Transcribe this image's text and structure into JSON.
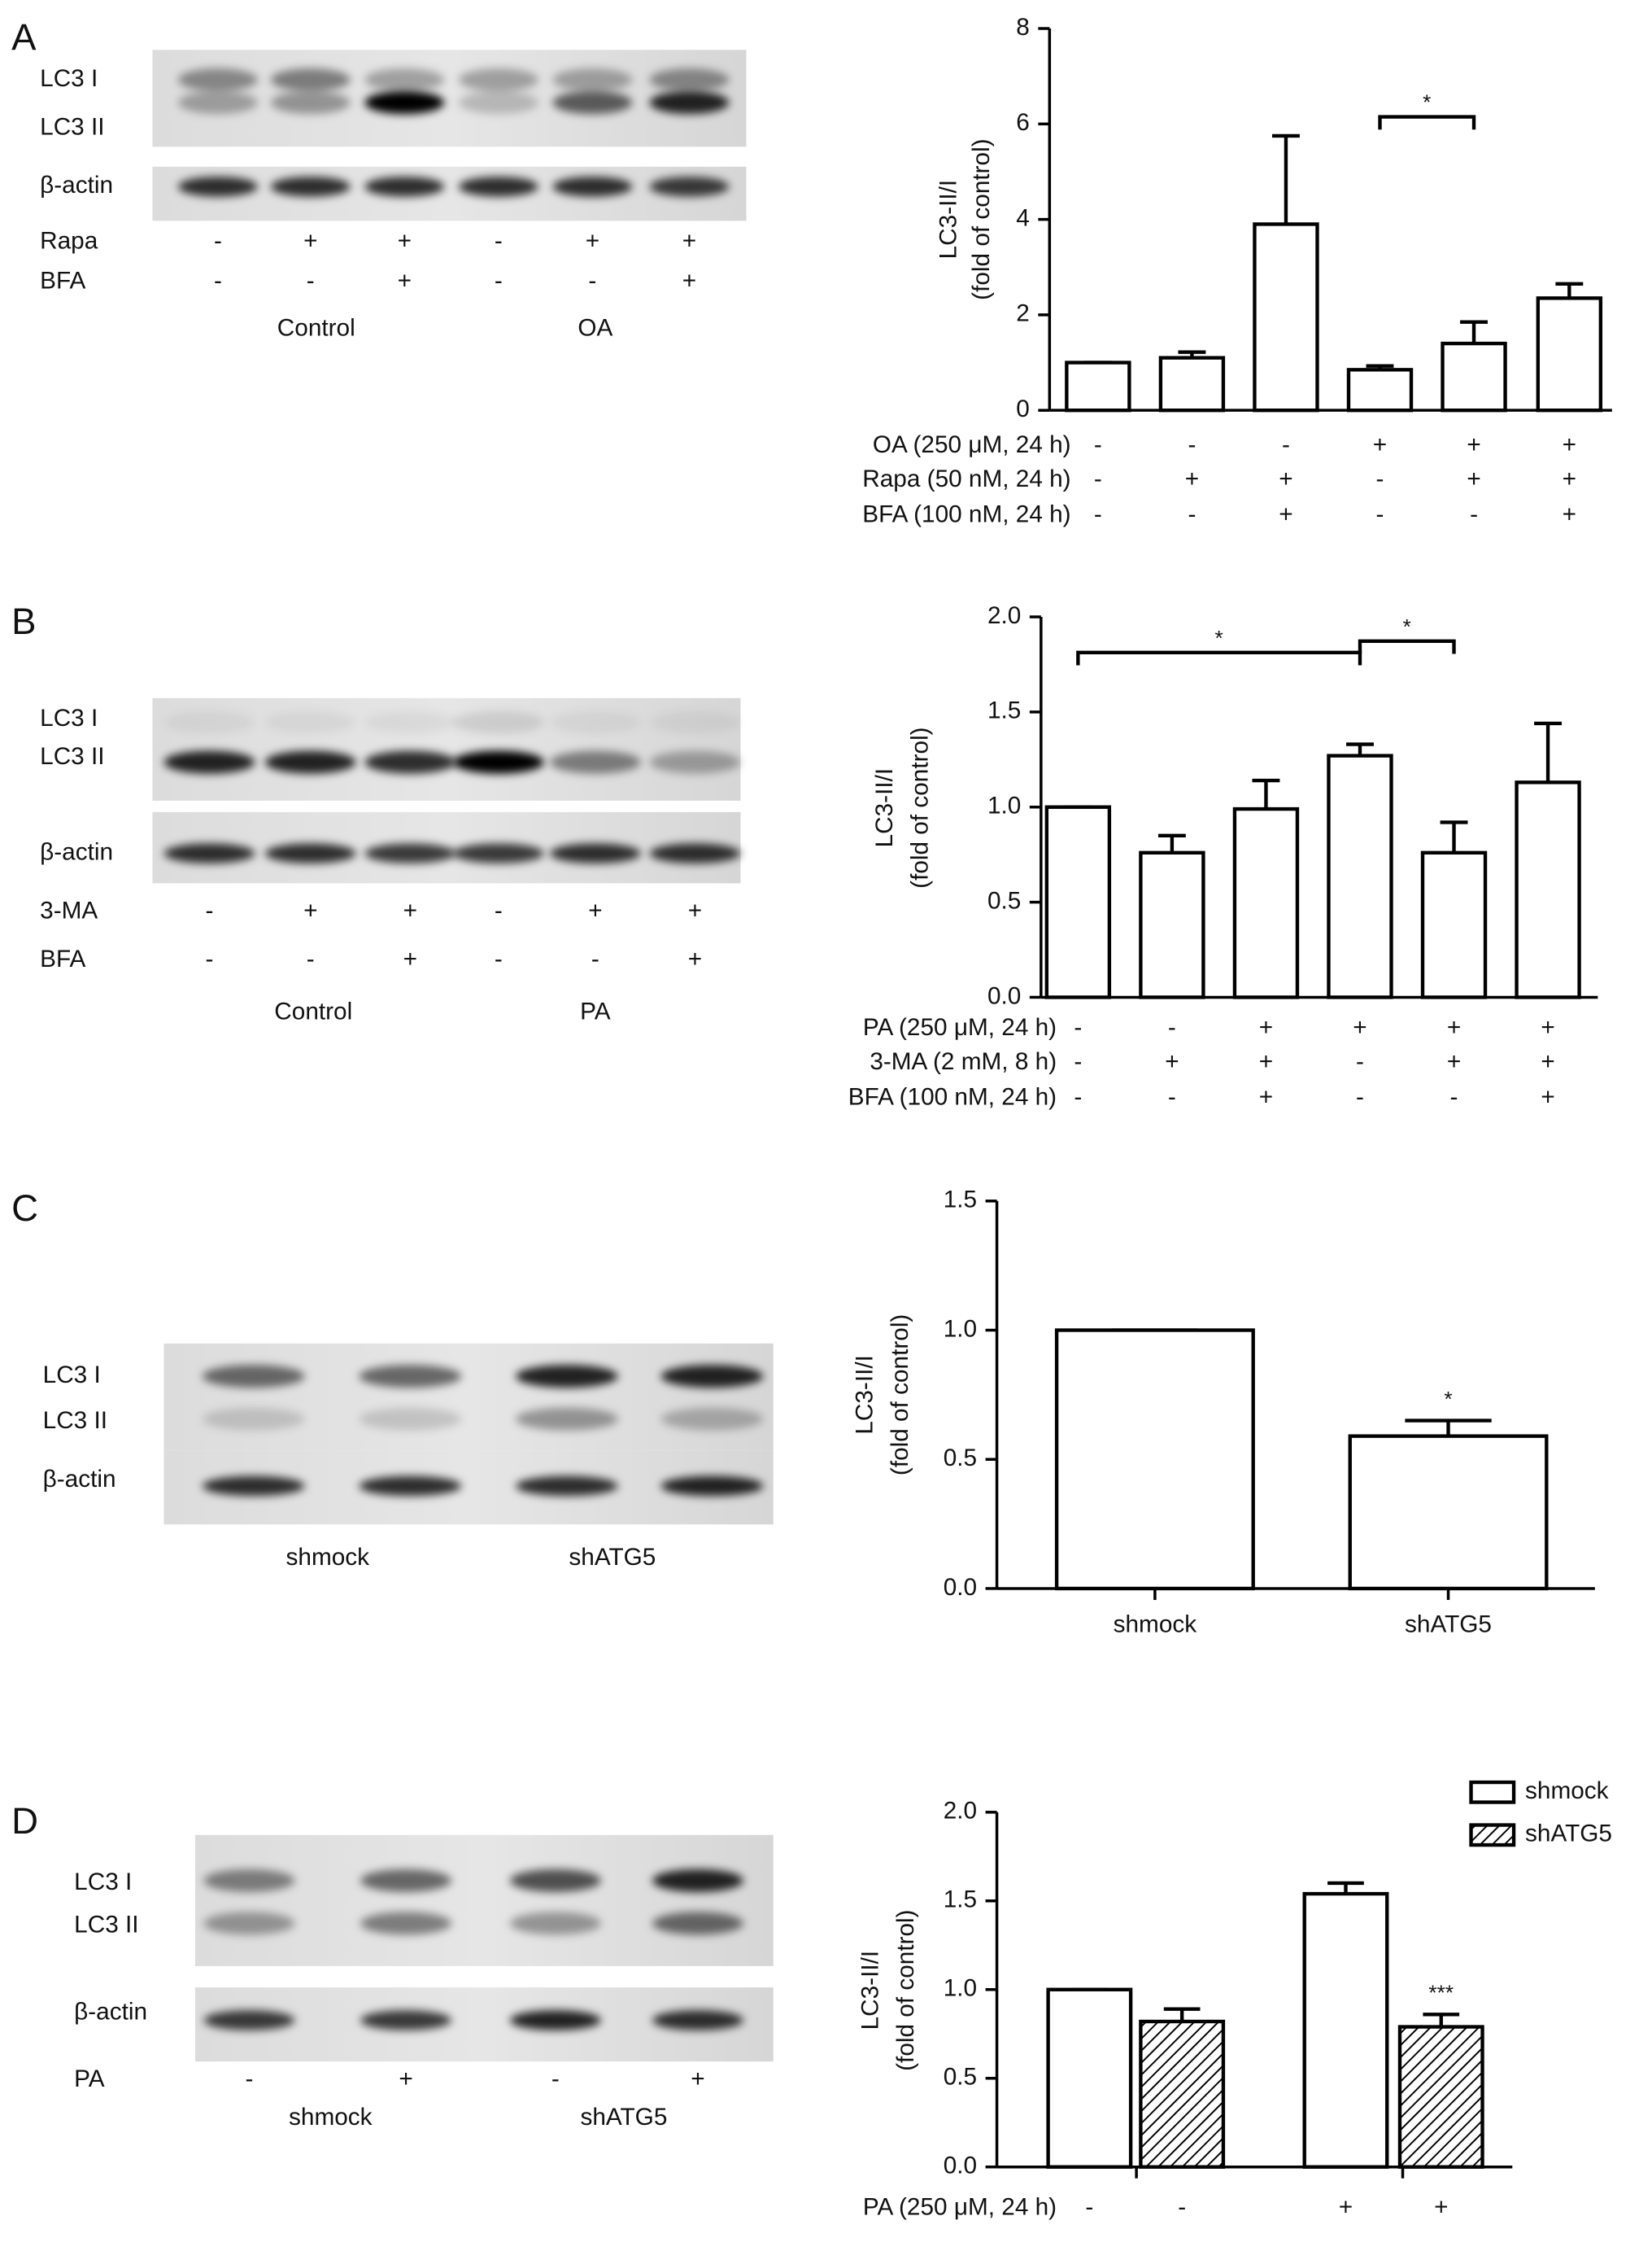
{
  "panels": [
    "A",
    "B",
    "C",
    "D"
  ],
  "blots": [
    {
      "bands": [
        "LC3 I",
        "LC3 II",
        "β-actin"
      ],
      "rows": [
        {
          "label": "Rapa",
          "signs": [
            "-",
            "+",
            "+",
            "-",
            "+",
            "+"
          ]
        },
        {
          "label": "BFA",
          "signs": [
            "-",
            "-",
            "+",
            "-",
            "-",
            "+"
          ]
        }
      ],
      "groups": [
        "Control",
        "OA"
      ]
    },
    {
      "bands": [
        "LC3 I",
        "LC3 II",
        "β-actin"
      ],
      "rows": [
        {
          "label": "3-MA",
          "signs": [
            "-",
            "+",
            "+",
            "-",
            "+",
            "+"
          ]
        },
        {
          "label": "BFA",
          "signs": [
            "-",
            "-",
            "+",
            "-",
            "-",
            "+"
          ]
        }
      ],
      "groups": [
        "Control",
        "PA"
      ]
    },
    {
      "bands": [
        "LC3 I",
        "LC3 II",
        "β-actin"
      ],
      "groups": [
        "shmock",
        "shATG5"
      ]
    },
    {
      "bands": [
        "LC3 I",
        "LC3 II",
        "β-actin"
      ],
      "rows": [
        {
          "label": "PA",
          "signs": [
            "-",
            "+",
            "-",
            "+"
          ]
        }
      ],
      "groups": [
        "shmock",
        "shATG5"
      ]
    }
  ],
  "chart_data": [
    {
      "type": "bar",
      "ylabel": [
        "LC3-II/I",
        "(fold of control)"
      ],
      "values": [
        1,
        1.1,
        3.9,
        0.85,
        1.4,
        2.35
      ],
      "errors": [
        0,
        0.12,
        1.85,
        0.08,
        0.45,
        0.3
      ],
      "color": "#ffffff",
      "edgecolor": "#000000",
      "ylim": [
        0,
        8
      ],
      "yticks": [
        0,
        2,
        4,
        6,
        8
      ],
      "conditions": [
        {
          "label": "OA (250 μM, 24 h)",
          "signs": [
            "-",
            "-",
            "-",
            "+",
            "+",
            "+"
          ]
        },
        {
          "label": "Rapa (50 nM, 24 h)",
          "signs": [
            "-",
            "+",
            "+",
            "-",
            "+",
            "+"
          ]
        },
        {
          "label": "BFA (100 nM, 24 h)",
          "signs": [
            "-",
            "-",
            "+",
            "-",
            "-",
            "+"
          ]
        }
      ],
      "annotations": [
        {
          "text": "*",
          "span": [
            3,
            4
          ]
        }
      ]
    },
    {
      "type": "bar",
      "ylabel": [
        "LC3-II/I",
        "(fold of control)"
      ],
      "values": [
        1.0,
        0.76,
        0.99,
        1.27,
        0.76,
        1.13
      ],
      "errors": [
        0,
        0.09,
        0.15,
        0.06,
        0.16,
        0.31
      ],
      "color": "#ffffff",
      "edgecolor": "#000000",
      "ylim": [
        0,
        2
      ],
      "yticks": [
        {
          "value": 0,
          "label": "0.0"
        },
        {
          "value": 0.5,
          "label": "0.5"
        },
        {
          "value": 1,
          "label": "1.0"
        },
        {
          "value": 1.5,
          "label": "1.5"
        },
        {
          "value": 2,
          "label": "2.0"
        }
      ],
      "conditions": [
        {
          "label": "PA (250 μM, 24 h)",
          "signs": [
            "-",
            "-",
            "+",
            "+",
            "+",
            "+"
          ]
        },
        {
          "label": "3-MA (2 mM, 8 h)",
          "signs": [
            "-",
            "+",
            "+",
            "-",
            "+",
            "+"
          ]
        },
        {
          "label": "BFA (100 nM, 24 h)",
          "signs": [
            "-",
            "-",
            "+",
            "-",
            "-",
            "+"
          ]
        }
      ],
      "annotations": [
        {
          "text": "*",
          "span": [
            0,
            3
          ]
        },
        {
          "text": "*",
          "span": [
            3,
            4
          ]
        }
      ]
    },
    {
      "type": "bar",
      "ylabel": [
        "LC3-II/I",
        "(fold of control)"
      ],
      "categories": [
        "shmock",
        "shATG5"
      ],
      "values": [
        1.0,
        0.59
      ],
      "errors": [
        0,
        0.06
      ],
      "color": "#ffffff",
      "edgecolor": "#000000",
      "ylim": [
        0,
        1.5
      ],
      "yticks": [
        {
          "value": 0,
          "label": "0.0"
        },
        {
          "value": 0.5,
          "label": "0.5"
        },
        {
          "value": 1,
          "label": "1.0"
        },
        {
          "value": 1.5,
          "label": "1.5"
        }
      ],
      "annotations": [
        {
          "text": "*",
          "span": [
            1
          ]
        }
      ]
    },
    {
      "type": "grouped-bar",
      "ylabel": [
        "LC3-II/I",
        "(fold of control)"
      ],
      "categories": [
        null,
        null
      ],
      "series": [
        {
          "name": "shmock",
          "color": "#ffffff",
          "pattern": "none",
          "values": [
            1.0,
            1.54
          ],
          "errors": [
            0,
            0.06
          ]
        },
        {
          "name": "shATG5",
          "color": "#ffffff",
          "pattern": "hatch",
          "values": [
            0.82,
            0.79
          ],
          "errors": [
            0.07,
            0.07
          ]
        }
      ],
      "edgecolor": "#000000",
      "ylim": [
        0,
        2
      ],
      "yticks": [
        {
          "value": 0,
          "label": "0.0"
        },
        {
          "value": 0.5,
          "label": "0.5"
        },
        {
          "value": 1,
          "label": "1.0"
        },
        {
          "value": 1.5,
          "label": "1.5"
        },
        {
          "value": 2,
          "label": "2.0"
        }
      ],
      "conditions": [
        {
          "label": "PA (250 μM, 24 h)",
          "signs": [
            "-",
            "-",
            "+",
            "+"
          ]
        }
      ],
      "legend": "upper right",
      "annotations": [
        {
          "text": "***",
          "span": [
            3
          ]
        }
      ]
    }
  ]
}
